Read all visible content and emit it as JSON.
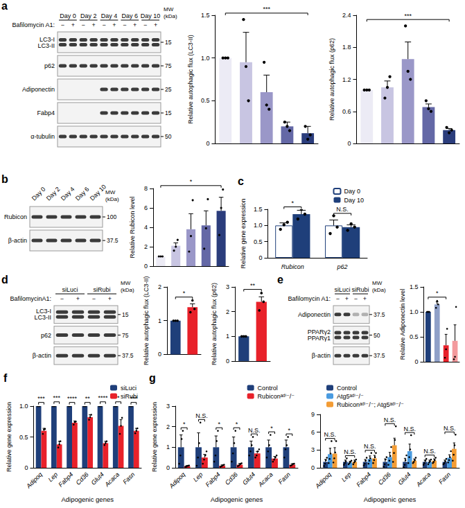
{
  "chart_data": [
    {
      "type": "bar",
      "y_label": "Relative autophagic flux (LC3-II)",
      "categories": [
        null,
        null,
        null,
        null,
        null
      ],
      "tick_labels": "y",
      "values": [
        1,
        0.95,
        0.6,
        0.2,
        0.12
      ],
      "errors": [
        0,
        0.35,
        0.2,
        0.05,
        0.08
      ],
      "points": [
        [
          1,
          1,
          1
        ],
        [
          1.45,
          0.9,
          0.5
        ],
        [
          0.95,
          0.45,
          0.4
        ],
        [
          0.25,
          0.2,
          0.15
        ],
        [
          0.2,
          0.05,
          0.1
        ]
      ],
      "colors": [
        "#ecebf5",
        "#c8c5e2",
        "#9a97c8",
        "#6468a6",
        "#2b3d7c"
      ],
      "annotations": [
        {
          "text": "***",
          "from": 0,
          "to": 4
        }
      ],
      "ylim": [
        0,
        1.5
      ],
      "yticks": [
        0,
        0.5,
        {
          "value": 1,
          "label": "1.0"
        },
        1.5
      ],
      "grid": false
    },
    {
      "type": "bar",
      "y_label": "Relative autophagic flux (p62)",
      "categories": [
        null,
        null,
        null,
        null,
        null
      ],
      "tick_labels": "y",
      "values": [
        1,
        1.05,
        1.58,
        0.68,
        0.25
      ],
      "errors": [
        0,
        0.12,
        0.32,
        0.06,
        0.03
      ],
      "points": [
        [
          1,
          1,
          1
        ],
        [
          0.85,
          1.05,
          1.25
        ],
        [
          2.2,
          1.35,
          1.2
        ],
        [
          0.8,
          0.65,
          0.6
        ],
        [
          0.3,
          0.2,
          0.25
        ]
      ],
      "colors": [
        "#ecebf5",
        "#c8c5e2",
        "#9a97c8",
        "#6468a6",
        "#2b3d7c"
      ],
      "annotations": [
        {
          "text": "***",
          "from": 0,
          "to": 4
        }
      ],
      "ylim": [
        0,
        2.4
      ],
      "yticks": [
        0,
        0.6,
        1.2,
        1.8,
        2.4
      ],
      "grid": false
    },
    {
      "type": "bar",
      "y_label": "Relative Rubicon level",
      "categories": [
        null,
        null,
        null,
        null,
        null
      ],
      "tick_labels": "y",
      "values": [
        1,
        2.1,
        3.8,
        4.2,
        5.7
      ],
      "errors": [
        0,
        0.3,
        1.6,
        1.5,
        1.4
      ],
      "points": [
        [
          1,
          1,
          1
        ],
        [
          1.6,
          2.0,
          2.7
        ],
        [
          1.5,
          3.1,
          6.8
        ],
        [
          1.8,
          3.9,
          6.9
        ],
        [
          3.2,
          6.0,
          7.9
        ]
      ],
      "colors": [
        "#ecebf5",
        "#c8c5e2",
        "#9a97c8",
        "#6468a6",
        "#2b3d7c"
      ],
      "annotations": [
        {
          "text": "*",
          "from": 0,
          "to": 4
        }
      ],
      "ylim": [
        0,
        8
      ],
      "yticks": [
        0,
        2,
        4,
        6,
        8
      ],
      "grid": false
    },
    {
      "type": "bar",
      "label": "c",
      "y_label": "Relative gene expression",
      "categories": [
        "Rubicon",
        "p62"
      ],
      "series": [
        {
          "name": "Day 0",
          "color": "#ffffff",
          "values": [
            1,
            1
          ],
          "errors": [
            0.08,
            0.17
          ],
          "points": [
            [
              0.88,
              1.02,
              1.1
            ],
            [
              0.75,
              1.3,
              0.95
            ]
          ]
        },
        {
          "name": "Day 10",
          "color": "#1f3f7a",
          "values": [
            1.35,
            0.95
          ],
          "errors": [
            0.12,
            0.07
          ],
          "points": [
            [
              1.2,
              1.5,
              1.35
            ],
            [
              0.85,
              1.05,
              0.95
            ]
          ]
        }
      ],
      "annotations": [
        "*",
        "N.S."
      ],
      "legend": "upper right",
      "ylim": [
        0,
        1.5
      ],
      "yticks": [
        0,
        0.5,
        {
          "value": 1,
          "label": "1.0"
        },
        1.5
      ],
      "grid": false
    },
    {
      "type": "bar",
      "y_label": "Relative autophagic flux (LC3-II)",
      "categories": [
        null,
        null
      ],
      "tick_labels": "y",
      "values": [
        1,
        1.4
      ],
      "errors": [
        0,
        0.1
      ],
      "points": [
        [
          1,
          1,
          1
        ],
        [
          1.25,
          1.6,
          1.35
        ]
      ],
      "colors": [
        "#1f3f7a",
        "#e8212a"
      ],
      "annotations": [
        {
          "text": "*",
          "from": 0,
          "to": 1
        }
      ],
      "ylim": [
        0,
        2
      ],
      "yticks": [
        0,
        1,
        2
      ],
      "grid": false
    },
    {
      "type": "bar",
      "y_label": "Relative autophagic flux (p62)",
      "categories": [
        null,
        null
      ],
      "tick_labels": "y",
      "values": [
        1,
        2.4
      ],
      "errors": [
        0.02,
        0.2
      ],
      "points": [
        [
          1,
          1,
          1
        ],
        [
          2.05,
          2.75,
          2.4
        ]
      ],
      "colors": [
        "#1f3f7a",
        "#e8212a"
      ],
      "annotations": [
        {
          "text": "**",
          "from": 0,
          "to": 1
        }
      ],
      "ylim": [
        0,
        3
      ],
      "yticks": [
        0,
        1,
        2,
        3
      ],
      "grid": false
    },
    {
      "type": "bar",
      "y_label": "Relative Adiponectin level",
      "categories": [
        null,
        null,
        null,
        null
      ],
      "tick_labels": "y",
      "values": [
        1,
        1.15,
        0.33,
        0.42
      ],
      "errors": [
        0,
        0.05,
        0.22,
        0.32
      ],
      "points": [
        [
          1,
          1,
          1
        ],
        [
          1.08,
          1.22,
          1.15
        ],
        [
          0.08,
          0.25,
          0.66
        ],
        [
          0.05,
          0.1,
          1.1
        ]
      ],
      "colors": [
        "#1f3f7a",
        "#8fa0c8",
        "#e8212a",
        "#f39a9d"
      ],
      "annotations": [
        {
          "text": "*",
          "from": 0,
          "to": 2
        }
      ],
      "ylim": [
        0,
        1.5
      ],
      "yticks": [
        0,
        0.5,
        {
          "value": 1,
          "label": "1.0"
        },
        1.5
      ],
      "grid": false
    },
    {
      "type": "bar",
      "label": "f",
      "y_label": "Relative gene expression",
      "x_label": "Adipogenic genes",
      "categories": [
        "Adipoq",
        "Lep",
        "Fabp4",
        "Cd36",
        "Glut4",
        "Acaca",
        "Fasn"
      ],
      "series": [
        {
          "name": "siLuci",
          "color": "#1f3f7a",
          "values": [
            1,
            1,
            1,
            1,
            1,
            1,
            1
          ],
          "errors": [
            0.01,
            0.02,
            0.01,
            0.01,
            0.02,
            0.02,
            0.01
          ],
          "points": [
            [
              1,
              1,
              1
            ],
            [
              1,
              1,
              1
            ],
            [
              1,
              1,
              1
            ],
            [
              1,
              1,
              1
            ],
            [
              1,
              1,
              1
            ],
            [
              1,
              1,
              1
            ],
            [
              1,
              1,
              1
            ]
          ]
        },
        {
          "name": "siRubi",
          "color": "#e8212a",
          "values": [
            0.6,
            0.38,
            0.73,
            0.82,
            0.4,
            0.68,
            0.6
          ],
          "errors": [
            0.04,
            0.05,
            0.03,
            0.04,
            0.03,
            0.1,
            0.04
          ],
          "points": [
            [
              0.55,
              0.62,
              0.63
            ],
            [
              0.33,
              0.38,
              0.43
            ],
            [
              0.7,
              0.74,
              0.75
            ],
            [
              0.78,
              0.82,
              0.86
            ],
            [
              0.37,
              0.4,
              0.43
            ],
            [
              0.55,
              0.68,
              0.81
            ],
            [
              0.56,
              0.6,
              0.64
            ]
          ]
        }
      ],
      "annotations": [
        "***",
        "***",
        "****",
        "**",
        "****",
        "*",
        "***"
      ],
      "legend": "upper right",
      "ylim": [
        0,
        1
      ],
      "yticks": [
        0,
        0.5,
        {
          "value": 1,
          "label": "1.0"
        }
      ],
      "grid": false
    },
    {
      "type": "bar",
      "label": "g",
      "y_label": "Relative gene expression",
      "x_label": "Adipogenic genes",
      "categories": [
        "Adipoq",
        "Lep",
        "Fabp4",
        "Cd36",
        "Glut4",
        "Acaca",
        "Fasn"
      ],
      "series": [
        {
          "name": "Control",
          "color": "#1f3f7a",
          "values": [
            1,
            1,
            1,
            1,
            1,
            1,
            1
          ],
          "errors": [
            0.6,
            0.7,
            0.55,
            0.5,
            0.3,
            0.35,
            0.35
          ],
          "points": [
            [
              0.2,
              0.6,
              1.4,
              1.8
            ],
            [
              0.1,
              0.5,
              1.2,
              2.2
            ],
            [
              0.3,
              0.6,
              1.3,
              1.8
            ],
            [
              0.3,
              0.7,
              1.2,
              1.8
            ],
            [
              0.6,
              0.8,
              1.1,
              1.5
            ],
            [
              0.5,
              0.8,
              1.1,
              1.6
            ],
            [
              0.5,
              0.9,
              1.1,
              1.5
            ]
          ]
        },
        {
          "name": "Rubiconᵃᵈⁱ⁻/⁻",
          "color": "#e8212a",
          "values": [
            0.08,
            0.5,
            0.1,
            0.15,
            0.7,
            0.45,
            0.15
          ],
          "errors": [
            0.03,
            0.15,
            0.04,
            0.06,
            0.1,
            0.1,
            0.05
          ],
          "points": [
            [
              0.05,
              0.06,
              0.1,
              0.11
            ],
            [
              0.2,
              0.4,
              0.6,
              0.8
            ],
            [
              0.05,
              0.08,
              0.12,
              0.15
            ],
            [
              0.08,
              0.12,
              0.18,
              0.22
            ],
            [
              0.5,
              0.6,
              0.8,
              0.9
            ],
            [
              0.3,
              0.4,
              0.5,
              0.6
            ],
            [
              0.1,
              0.12,
              0.18,
              0.2
            ]
          ]
        }
      ],
      "annotations": [
        "*",
        "N.S.",
        "*",
        "*",
        "N.S.",
        "*",
        "*"
      ],
      "legend": "upper right",
      "ylim": [
        0,
        3
      ],
      "yticks": [
        0,
        1,
        2,
        3
      ],
      "grid": false
    },
    {
      "type": "bar",
      "x_label": "Adipogenic genes",
      "categories": [
        "Adipoq",
        "Lep",
        "Fabp4",
        "Cd36",
        "Glut4",
        "Acaca",
        "Fasn"
      ],
      "series": [
        {
          "name": "Control",
          "color": "#1f3f7a",
          "values": [
            1,
            1,
            1,
            1,
            1,
            1,
            1
          ],
          "errors": [
            0.4,
            0.3,
            0.4,
            0.5,
            0.6,
            0.3,
            0.3
          ],
          "points": [
            [
              0.3,
              0.7,
              1.3,
              1.7
            ],
            [
              0.5,
              0.8,
              1.1,
              1.6
            ],
            [
              0.4,
              0.7,
              1.2,
              1.7
            ],
            [
              0.2,
              0.6,
              1.4,
              1.8
            ],
            [
              0.1,
              0.5,
              1.3,
              2.1
            ],
            [
              0.5,
              0.8,
              1.2,
              1.5
            ],
            [
              0.6,
              0.8,
              1.1,
              1.5
            ]
          ]
        },
        {
          "name": "Atg5ᵃᵈⁱ⁻/⁻",
          "color": "#4a9be0",
          "values": [
            2.3,
            0.9,
            1.5,
            1.8,
            2.8,
            1.0,
            1.7
          ],
          "errors": [
            1.0,
            0.2,
            0.5,
            0.8,
            1.2,
            0.3,
            0.5
          ],
          "points": [
            [
              0.8,
              1.5,
              2.4,
              4.5
            ],
            [
              0.6,
              0.8,
              1.0,
              1.2
            ],
            [
              0.7,
              1.2,
              1.6,
              2.5
            ],
            [
              0.5,
              1.2,
              2.0,
              3.5
            ],
            [
              0.8,
              1.8,
              3.1,
              5.5
            ],
            [
              0.6,
              0.9,
              1.1,
              1.4
            ],
            [
              0.9,
              1.3,
              1.8,
              2.8
            ]
          ]
        },
        {
          "name": "Rubiconᵃᵈⁱ⁻/⁻; Atg5ᵃᵈⁱ⁻/⁻",
          "color": "#f39c34",
          "values": [
            2.4,
            1.0,
            1.6,
            3.8,
            1.2,
            1.2,
            3.2
          ],
          "errors": [
            1.0,
            0.3,
            0.5,
            1.2,
            0.3,
            0.3,
            1.0
          ],
          "points": [
            [
              0.9,
              1.6,
              2.6,
              4.5
            ],
            [
              0.6,
              0.9,
              1.1,
              1.4
            ],
            [
              0.8,
              1.3,
              1.8,
              2.5
            ],
            [
              1.0,
              2.5,
              4.7,
              7.0
            ],
            [
              0.8,
              1.0,
              1.3,
              1.7
            ],
            [
              0.8,
              1.0,
              1.3,
              1.7
            ],
            [
              1.2,
              2.2,
              3.8,
              5.6
            ]
          ]
        }
      ],
      "annotations": [
        "N.S.",
        "N.S.",
        "N.S.",
        "N.S.",
        "N.S.",
        "N.S.",
        "N.S."
      ],
      "legend": "upper left",
      "ylim": [
        0,
        9
      ],
      "yticks": [
        0,
        3,
        6,
        9
      ],
      "grid": false
    }
  ],
  "blots": [
    {
      "label": "a",
      "treatment": "Bafilomycin A1:",
      "groups": [
        "Day 0",
        "Day 2",
        "Day 4",
        "Day 6",
        "Day 10"
      ],
      "signs": [
        "−",
        "+",
        "−",
        "+",
        "−",
        "+",
        "−",
        "+",
        "−",
        "+"
      ],
      "mw_title": [
        "MW",
        "(kDa)"
      ],
      "rows": [
        {
          "names": [
            "LC3-I",
            "LC3-II"
          ],
          "mw": "15"
        },
        {
          "names": [
            "p62"
          ],
          "mw": "75"
        },
        {
          "names": [
            "Adiponectin"
          ],
          "mw": "25",
          "absent": [
            0,
            1,
            2,
            3
          ]
        },
        {
          "names": [
            "Fabp4"
          ],
          "mw": "15",
          "absent": [
            0,
            1,
            2,
            3
          ]
        },
        {
          "names": [
            "α-tubulin"
          ],
          "mw": "50"
        }
      ]
    },
    {
      "label": "b",
      "groups": [
        "Day 0",
        "Day 2",
        "Day 4",
        "Day 6",
        "Day 10"
      ],
      "mw_title": [
        "MW",
        "(kDa)"
      ],
      "rows": [
        {
          "names": [
            "Rubicon"
          ],
          "mw": "100"
        },
        {
          "names": [
            "β-actin"
          ],
          "mw": "37.5"
        }
      ]
    },
    {
      "label": "d",
      "treatment": "BafilomycinA1:",
      "groups": [
        "siLuci",
        "siRubi"
      ],
      "signs": [
        "−",
        "+",
        "−",
        "+"
      ],
      "mw_title": [
        "MW",
        "(kDa)"
      ],
      "rows": [
        {
          "names": [
            "LC3-I",
            "LC3-II"
          ],
          "mw": "15"
        },
        {
          "names": [
            "p62"
          ],
          "mw": "75"
        },
        {
          "names": [
            "β-actin"
          ],
          "mw": "37.5"
        }
      ]
    },
    {
      "label": "e",
      "treatment": "Bafilomycin A1:",
      "groups": [
        "siLuci",
        "siRubi"
      ],
      "signs": [
        "−",
        "+",
        "−",
        "+"
      ],
      "mw_title": [
        "MW",
        "(kDa)"
      ],
      "rows": [
        {
          "names": [
            "Adiponectin"
          ],
          "mw": "37.5",
          "faint": [
            2,
            3
          ]
        },
        {
          "names": [
            "PPARγ2",
            "PPARγ1"
          ],
          "mw": "50"
        },
        {
          "names": [
            "β-actin"
          ],
          "mw": "37.5"
        }
      ]
    }
  ]
}
